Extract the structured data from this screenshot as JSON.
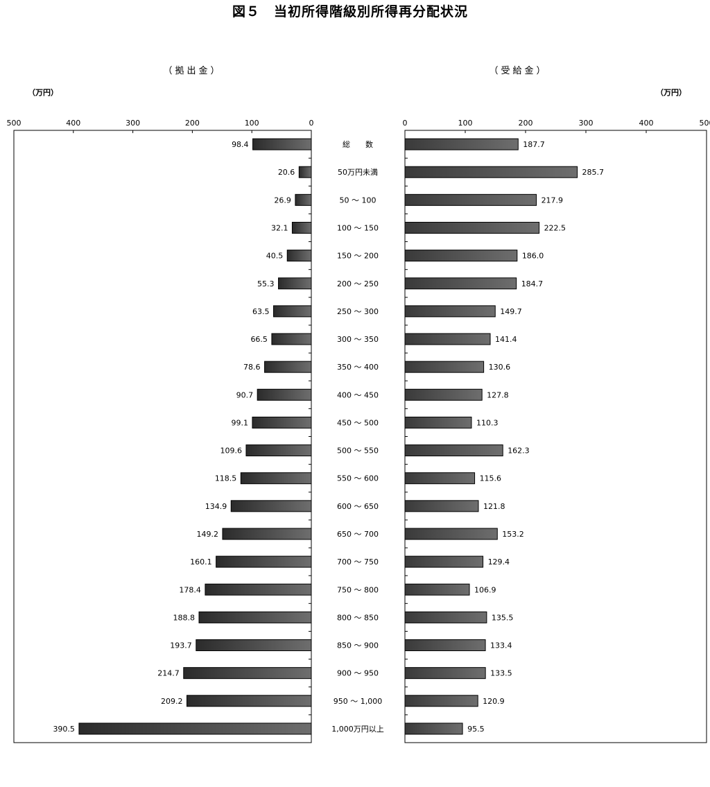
{
  "chart_data": {
    "type": "bar",
    "title": "図５　当初所得階級別所得再分配状況",
    "unit_label_left": "（万円）",
    "unit_label_right": "（万円）",
    "categories": [
      "総　　数",
      "50万円未満",
      "50 ～ 100",
      "100 ～ 150",
      "150 ～ 200",
      "200 ～ 250",
      "250 ～ 300",
      "300 ～ 350",
      "350 ～ 400",
      "400 ～ 450",
      "450 ～ 500",
      "500 ～ 550",
      "550 ～ 600",
      "600 ～ 650",
      "650 ～ 700",
      "700 ～ 750",
      "750 ～ 800",
      "800 ～ 850",
      "850 ～ 900",
      "900 ～ 950",
      "950 ～ 1,000",
      "1,000万円以上"
    ],
    "series": [
      {
        "name": "（拠出金）",
        "values": [
          98.4,
          20.6,
          26.9,
          32.1,
          40.5,
          55.3,
          63.5,
          66.5,
          78.6,
          90.7,
          99.1,
          109.6,
          118.5,
          134.9,
          149.2,
          160.1,
          178.4,
          188.8,
          193.7,
          214.7,
          209.2,
          390.5
        ],
        "labels": [
          "98.4",
          "20.6",
          "26.9",
          "32.1",
          "40.5",
          "55.3",
          "63.5",
          "66.5",
          "78.6",
          "90.7",
          "99.1",
          "109.6",
          "118.5",
          "134.9",
          "149.2",
          "160.1",
          "178.4",
          "188.8",
          "193.7",
          "214.7",
          "209.2",
          "390.5"
        ],
        "xlim": [
          500,
          0
        ],
        "ticks": [
          "500",
          "400",
          "300",
          "200",
          "100",
          "0"
        ]
      },
      {
        "name": "（受給金）",
        "values": [
          187.7,
          285.7,
          217.9,
          222.5,
          186.0,
          184.7,
          149.7,
          141.4,
          130.6,
          127.8,
          110.3,
          162.3,
          115.6,
          121.8,
          153.2,
          129.4,
          106.9,
          135.5,
          133.4,
          133.5,
          120.9,
          95.5
        ],
        "labels": [
          "187.7",
          "285.7",
          "217.9",
          "222.5",
          "186.0",
          "184.7",
          "149.7",
          "141.4",
          "130.6",
          "127.8",
          "110.3",
          "162.3",
          "115.6",
          "121.8",
          "153.2",
          "129.4",
          "106.9",
          "135.5",
          "133.4",
          "133.5",
          "120.9",
          "95.5"
        ],
        "xlim": [
          0,
          500
        ],
        "ticks": [
          "0",
          "100",
          "200",
          "300",
          "400",
          "500"
        ]
      }
    ],
    "bar_gradient": [
      "#2e2e2e",
      "#6a6a6a"
    ],
    "grid": false,
    "legend": "none"
  }
}
